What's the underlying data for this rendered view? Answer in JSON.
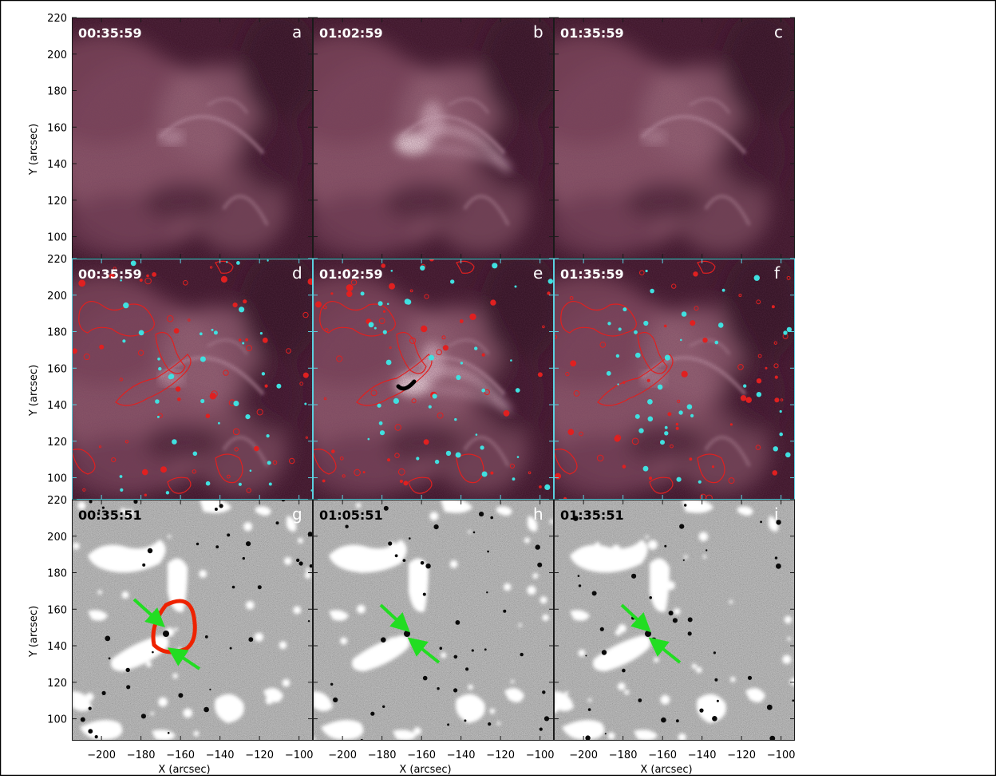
{
  "figure": {
    "x_axis_label": "X (arcsec)",
    "y_axis_label": "Y (arcsec)",
    "x_ticks": [
      "-200",
      "-180",
      "-160",
      "-140",
      "-120",
      "-100"
    ],
    "y_ticks": [
      "220",
      "200",
      "180",
      "160",
      "140",
      "120",
      "100"
    ],
    "panels": [
      {
        "letter": "a",
        "time": "00:35:59",
        "type": "euv"
      },
      {
        "letter": "b",
        "time": "01:02:59",
        "type": "euv"
      },
      {
        "letter": "c",
        "time": "01:35:59",
        "type": "euv"
      },
      {
        "letter": "d",
        "time": "00:35:59",
        "type": "euv-contour"
      },
      {
        "letter": "e",
        "time": "01:02:59",
        "type": "euv-contour"
      },
      {
        "letter": "f",
        "time": "01:35:59",
        "type": "euv-contour"
      },
      {
        "letter": "g",
        "time": "00:35:51",
        "type": "magnetogram"
      },
      {
        "letter": "h",
        "time": "01:05:51",
        "type": "magnetogram"
      },
      {
        "letter": "i",
        "time": "01:35:51",
        "type": "magnetogram"
      }
    ],
    "colors": {
      "euv_dark": "#3a1226",
      "euv_mid": "#8f5a6c",
      "euv_bright": "#f2dde3",
      "positive_contour": "#e02020",
      "negative_contour": "#40e0e0",
      "arrow": "#22dd22",
      "region_outline": "#ee2200",
      "frame_accent": "#5ad0e0"
    }
  }
}
